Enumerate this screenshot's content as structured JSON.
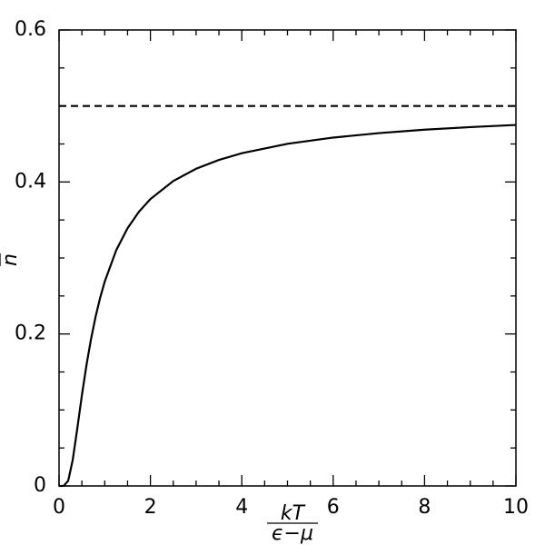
{
  "chart_data": {
    "type": "line",
    "xlabel": {
      "numerator": "kT",
      "denominator": "ϵ−μ"
    },
    "ylabel": "n",
    "series": [
      {
        "x": [
          0,
          0.1,
          0.2,
          0.3,
          0.4,
          0.5,
          0.6,
          0.7,
          0.8,
          0.9,
          1,
          1.25,
          1.5,
          1.75,
          2,
          2.5,
          3,
          3.5,
          4,
          5,
          6,
          7,
          8,
          9,
          10
        ],
        "values": [
          0,
          4.54e-05,
          0.0067,
          0.0344,
          0.0759,
          0.1192,
          0.1589,
          0.1933,
          0.2227,
          0.2477,
          0.2689,
          0.31,
          0.3392,
          0.3609,
          0.3775,
          0.4013,
          0.4174,
          0.429,
          0.4378,
          0.4502,
          0.4584,
          0.4643,
          0.4688,
          0.4722,
          0.475
        ],
        "color": "#000000",
        "dash": false
      },
      {
        "x": [
          0,
          10
        ],
        "values": [
          0.5,
          0.5
        ],
        "color": "#000000",
        "dash": true
      }
    ],
    "xlim": [
      0,
      10
    ],
    "xticks": [
      0,
      2,
      4,
      6,
      8,
      10
    ],
    "xminorticks": [
      0.5,
      1,
      1.5,
      2.5,
      3,
      3.5,
      4.5,
      5,
      5.5,
      6.5,
      7,
      7.5,
      8.5,
      9,
      9.5
    ],
    "ylim": [
      0,
      0.6
    ],
    "yticks": [
      0,
      0.2,
      0.4,
      0.6
    ],
    "yminorticks": [
      0.05,
      0.1,
      0.15,
      0.25,
      0.3,
      0.35,
      0.45,
      0.5,
      0.55
    ]
  }
}
